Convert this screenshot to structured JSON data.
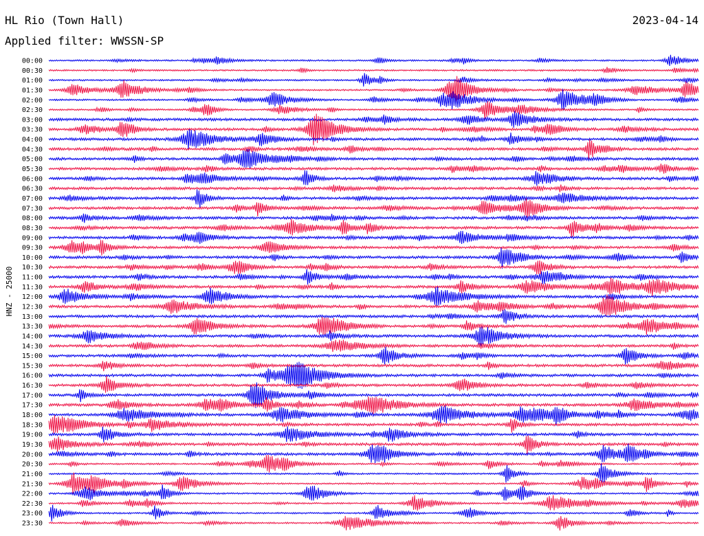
{
  "header": {
    "station": "HL Rio (Town Hall)",
    "date": "2023-04-14",
    "filter": "Applied filter: WWSSN-SP"
  },
  "channel_label": "HNZ - 25000",
  "colors": {
    "trace_a": "#0000ee",
    "trace_b": "#ee1144",
    "background": "#ffffff",
    "text": "#000000"
  },
  "chart_data": {
    "type": "line",
    "description": "helicorder",
    "row_labels": [
      "00:00",
      "00:30",
      "01:00",
      "01:30",
      "02:00",
      "02:30",
      "03:00",
      "03:30",
      "04:00",
      "04:30",
      "05:00",
      "05:30",
      "06:00",
      "06:30",
      "07:00",
      "07:30",
      "08:00",
      "08:30",
      "09:00",
      "09:30",
      "10:00",
      "10:30",
      "11:00",
      "11:30",
      "12:00",
      "12:30",
      "13:00",
      "13:30",
      "14:00",
      "14:30",
      "15:00",
      "15:30",
      "16:00",
      "16:30",
      "17:00",
      "17:30",
      "18:00",
      "18:30",
      "19:00",
      "19:30",
      "20:00",
      "20:30",
      "21:00",
      "21:30",
      "22:00",
      "22:30",
      "23:00",
      "23:30"
    ],
    "series_colors_alternating": [
      "#0000ee",
      "#ee1144"
    ],
    "row_duration_minutes": 30
  }
}
